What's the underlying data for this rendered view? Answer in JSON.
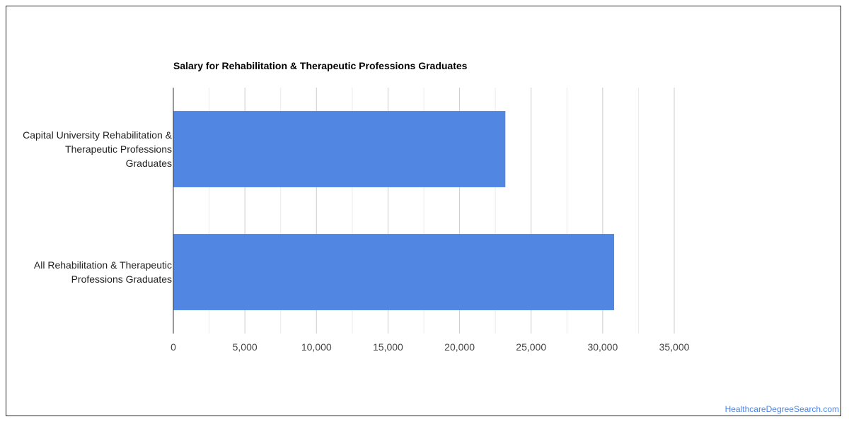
{
  "chart_data": {
    "type": "bar",
    "orientation": "horizontal",
    "title": "Salary for Rehabilitation & Therapeutic Professions Graduates",
    "categories": [
      [
        "Capital University Rehabilitation &",
        "Therapeutic Professions",
        "Graduates"
      ],
      [
        "All Rehabilitation & Therapeutic",
        "Professions Graduates"
      ]
    ],
    "values": [
      23200,
      30800
    ],
    "xlim": [
      0,
      35000
    ],
    "xticks": [
      0,
      5000,
      10000,
      15000,
      20000,
      25000,
      30000,
      35000
    ],
    "xtick_labels": [
      "0",
      "5,000",
      "10,000",
      "15,000",
      "20,000",
      "25,000",
      "30,000",
      "35,000"
    ],
    "grid": true,
    "legend": "none",
    "colors": {
      "bar": "#5286e3",
      "grid_major": "#cccccc",
      "grid_minor": "#ebebeb",
      "axis": "#333333"
    }
  },
  "watermark": "HealthcareDegreeSearch.com"
}
